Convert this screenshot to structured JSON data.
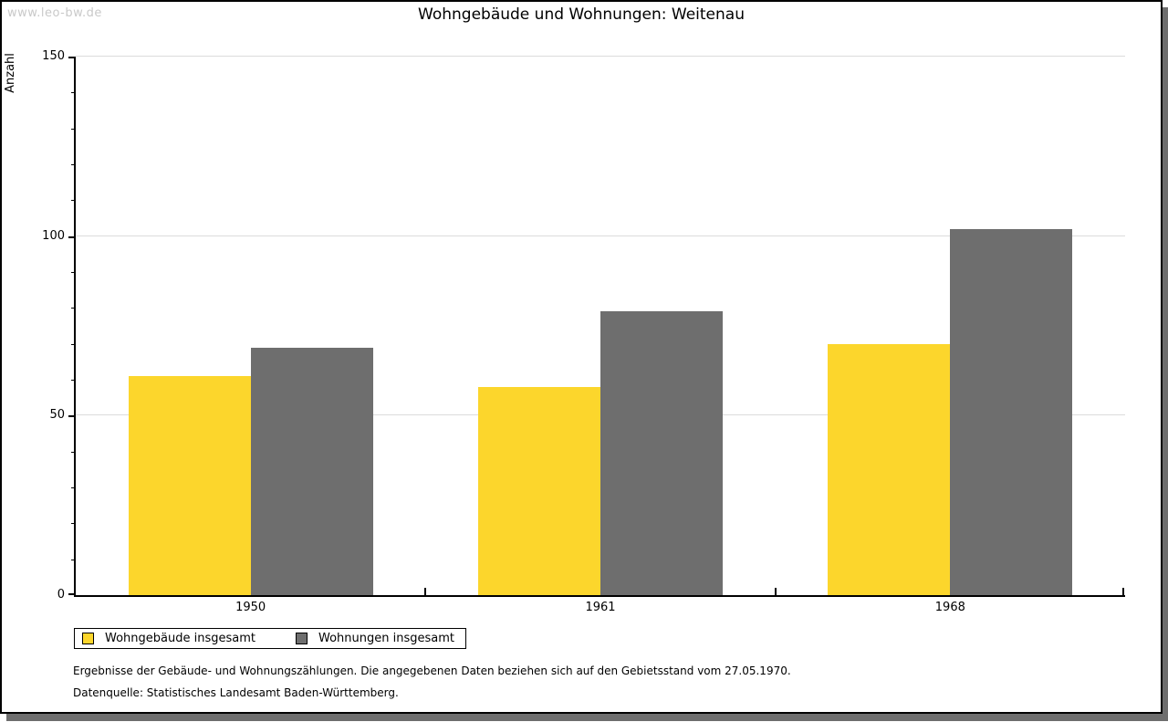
{
  "watermark": "www.leo-bw.de",
  "chart_data": {
    "type": "bar",
    "title": "Wohngebäude und Wohnungen: Weitenau",
    "categories": [
      "1950",
      "1961",
      "1968"
    ],
    "series": [
      {
        "name": "Wohngebäude insgesamt",
        "color": "#FCD62C",
        "values": [
          61,
          58,
          70
        ]
      },
      {
        "name": "Wohnungen insgesamt",
        "color": "#6E6E6E",
        "values": [
          69,
          79,
          102
        ]
      }
    ],
    "xlabel": "",
    "ylabel": "Anzahl",
    "ylim": [
      0,
      150
    ],
    "yticks_major": [
      0,
      50,
      100,
      150
    ],
    "ytick_minor_step": 10,
    "grid": "horizontal-major",
    "legend_position": "bottom-left"
  },
  "footnotes": {
    "line1": "Ergebnisse der Gebäude- und Wohnungszählungen. Die angegebenen Daten beziehen sich auf den Gebietsstand vom 27.05.1970.",
    "line2": "Datenquelle: Statistisches Landesamt Baden-Württemberg."
  },
  "colors": {
    "series_yellow": "#FCD62C",
    "series_gray": "#6E6E6E",
    "gridline": "#DCDCDC",
    "axis": "#000000",
    "watermark": "#C9C9C9",
    "window_shadow": "#6E6E6E",
    "background": "#FFFFFF"
  }
}
